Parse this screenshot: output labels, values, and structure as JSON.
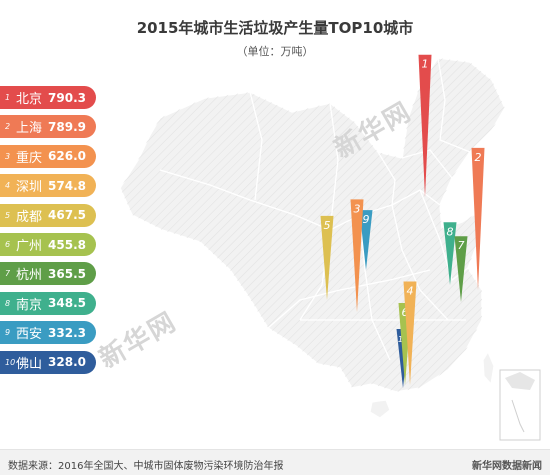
{
  "header": {
    "title": "2015年城市生活垃圾产生量TOP10城市",
    "subtitle": "（单位：万吨）"
  },
  "watermarks": [
    "新华网",
    "新华网"
  ],
  "footer": {
    "source": "数据来源：2016年全国大、中城市固体废物污染环境防治年报",
    "brand": "新华网数据新闻"
  },
  "chart_data": {
    "type": "bar",
    "unit": "万吨",
    "categories": [
      "北京",
      "上海",
      "重庆",
      "深圳",
      "成都",
      "广州",
      "杭州",
      "南京",
      "西安",
      "佛山"
    ],
    "ranks": [
      "1",
      "2",
      "3",
      "4",
      "5",
      "6",
      "7",
      "8",
      "9",
      "10"
    ],
    "values": [
      790.3,
      789.9,
      626.0,
      574.8,
      467.5,
      455.8,
      365.5,
      348.5,
      332.3,
      328.0
    ],
    "value_labels": [
      "790.3",
      "789.9",
      "626.0",
      "574.8",
      "467.5",
      "455.8",
      "365.5",
      "348.5",
      "332.3",
      "328.0"
    ],
    "colors": [
      "#e34c4c",
      "#ef7a55",
      "#f3924f",
      "#f1b256",
      "#ddc051",
      "#a6c24f",
      "#5f9e48",
      "#3fb08d",
      "#3a9cc2",
      "#2f5d9c"
    ],
    "map_background": "#f2f2f2",
    "map_border": "#ffffff"
  }
}
